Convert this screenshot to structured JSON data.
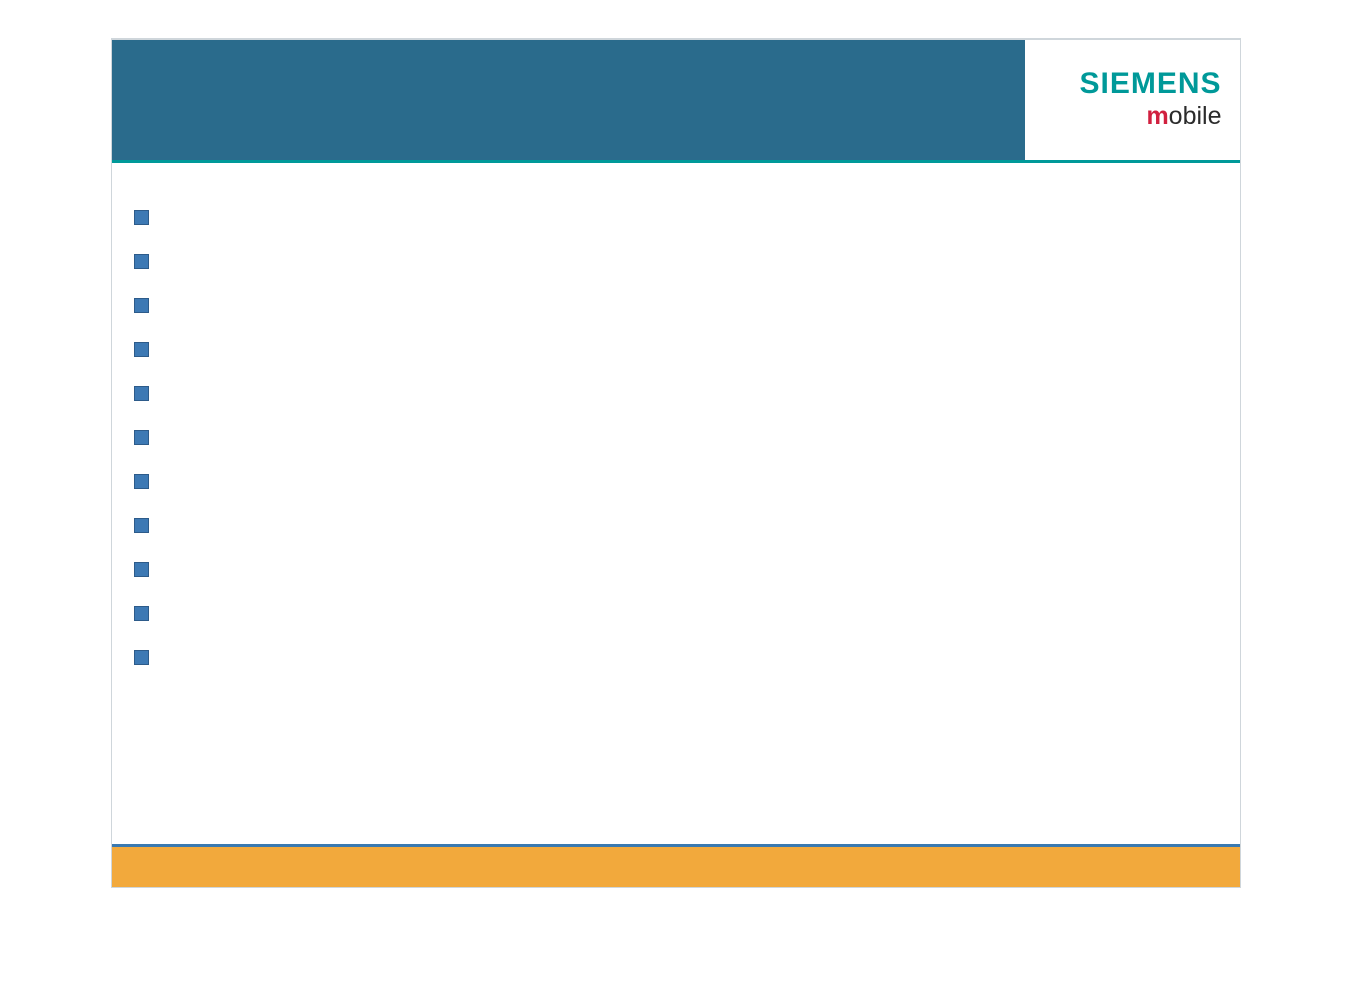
{
  "colors": {
    "header": "#2a6b8c",
    "siemens": "#009999",
    "m": "#d1203f",
    "bullet_fill": "#3d79b4",
    "bullet_border": "#2d5b8a",
    "footer": "#f2a93c",
    "footer_rule": "#3a79b0"
  },
  "logo": {
    "line1": "SIEMENS",
    "line2_m": "m",
    "line2_rest": "obile"
  },
  "bullets": {
    "count": 11,
    "items": [
      "",
      "",
      "",
      "",
      "",
      "",
      "",
      "",
      "",
      "",
      ""
    ]
  }
}
